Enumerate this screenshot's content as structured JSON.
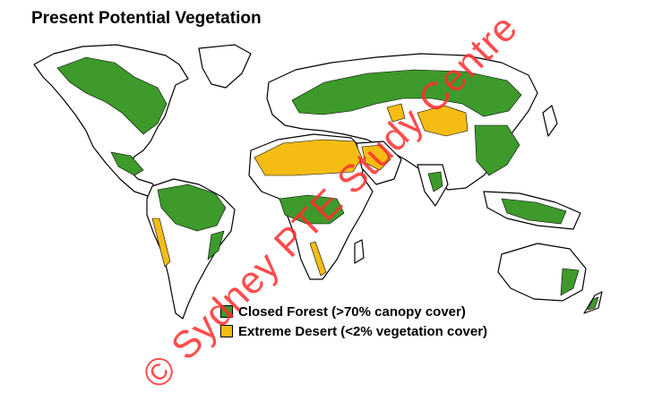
{
  "title": "Present Potential Vegetation",
  "colors": {
    "forest": "#3d9a2b",
    "desert": "#f5bd14",
    "land": "#ffffff",
    "outline": "#000000",
    "watermark": "#ff2f2f"
  },
  "legend": [
    {
      "label": "Closed Forest (>70% canopy cover)",
      "color": "#3d9a2b"
    },
    {
      "label": "Extreme Desert (<2% vegetation cover)",
      "color": "#f5bd14"
    }
  ],
  "watermark": "© Sydney PTE Study Centre"
}
